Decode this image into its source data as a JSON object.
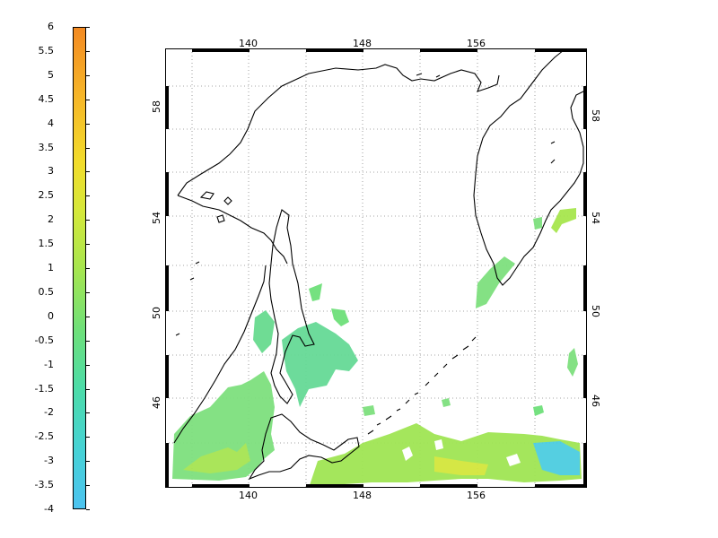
{
  "colorbar": {
    "ticks": [
      "6",
      "5.5",
      "5",
      "4.5",
      "4",
      "3.5",
      "3",
      "2.5",
      "2",
      "1.5",
      "1",
      "0.5",
      "0",
      "-0.5",
      "-1",
      "-1.5",
      "-2",
      "-2.5",
      "-3",
      "-3.5",
      "-4"
    ],
    "min": -4,
    "max": 6,
    "colors": {
      "low": "#4cc3f0",
      "mid": "#a7e64e",
      "high": "#f38a22"
    }
  },
  "map": {
    "lon_labels": [
      "140",
      "148",
      "156"
    ],
    "lat_labels": [
      "58",
      "54",
      "50",
      "46"
    ],
    "lon_range": [
      135,
      173
    ],
    "lat_range": [
      41,
      60
    ]
  }
}
